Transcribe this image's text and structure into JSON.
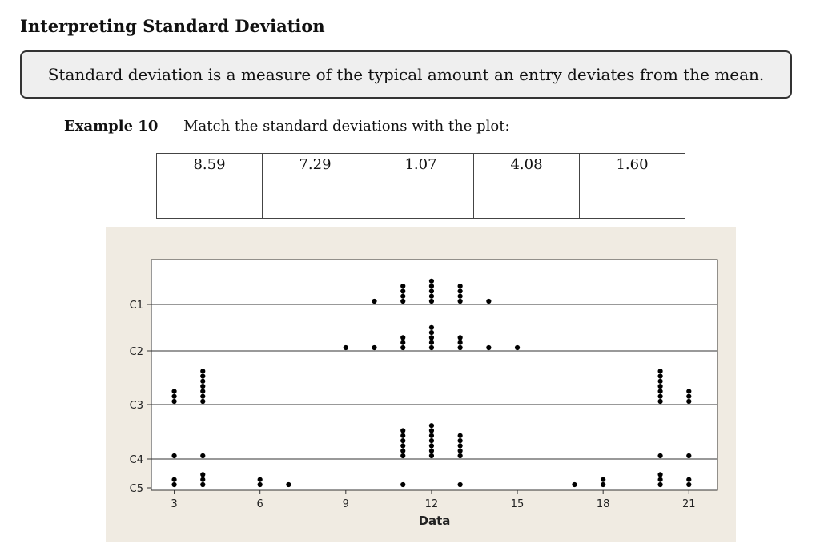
{
  "section": {
    "title": "Interpreting Standard Deviation"
  },
  "definition": {
    "text": "Standard deviation is a measure of the typical amount an entry deviates from the mean."
  },
  "example": {
    "label": "Example 10",
    "prompt": "Match the standard deviations with the plot:"
  },
  "sd_table": {
    "values": [
      "8.59",
      "7.29",
      "1.07",
      "4.08",
      "1.60"
    ]
  },
  "chart_data": {
    "type": "scatter",
    "xlabel": "Data",
    "xticks": [
      3,
      6,
      9,
      12,
      15,
      18,
      21
    ],
    "xlim": [
      2.2,
      22
    ],
    "rows": [
      {
        "label": "C1",
        "points": [
          [
            10,
            1
          ],
          [
            11,
            4
          ],
          [
            12,
            5
          ],
          [
            13,
            4
          ],
          [
            14,
            1
          ]
        ]
      },
      {
        "label": "C2",
        "points": [
          [
            9,
            1
          ],
          [
            10,
            1
          ],
          [
            11,
            3
          ],
          [
            12,
            5
          ],
          [
            13,
            3
          ],
          [
            14,
            1
          ],
          [
            15,
            1
          ]
        ]
      },
      {
        "label": "C3",
        "points": [
          [
            3,
            3
          ],
          [
            4,
            7
          ],
          [
            20,
            7
          ],
          [
            21,
            3
          ]
        ]
      },
      {
        "label": "C4",
        "points": [
          [
            3,
            1
          ],
          [
            4,
            1
          ],
          [
            11,
            6
          ],
          [
            12,
            7
          ],
          [
            13,
            5
          ],
          [
            20,
            1
          ],
          [
            21,
            1
          ]
        ]
      },
      {
        "label": "C5",
        "points": [
          [
            3,
            2
          ],
          [
            4,
            3
          ],
          [
            6,
            2
          ],
          [
            7,
            1
          ],
          [
            11,
            1
          ],
          [
            13,
            1
          ],
          [
            17,
            1
          ],
          [
            18,
            2
          ],
          [
            20,
            3
          ],
          [
            21,
            2
          ]
        ]
      }
    ],
    "colors": {
      "dot": "#000000",
      "panel_bg": "#f0ebe2",
      "plot_bg": "#ffffff"
    }
  }
}
